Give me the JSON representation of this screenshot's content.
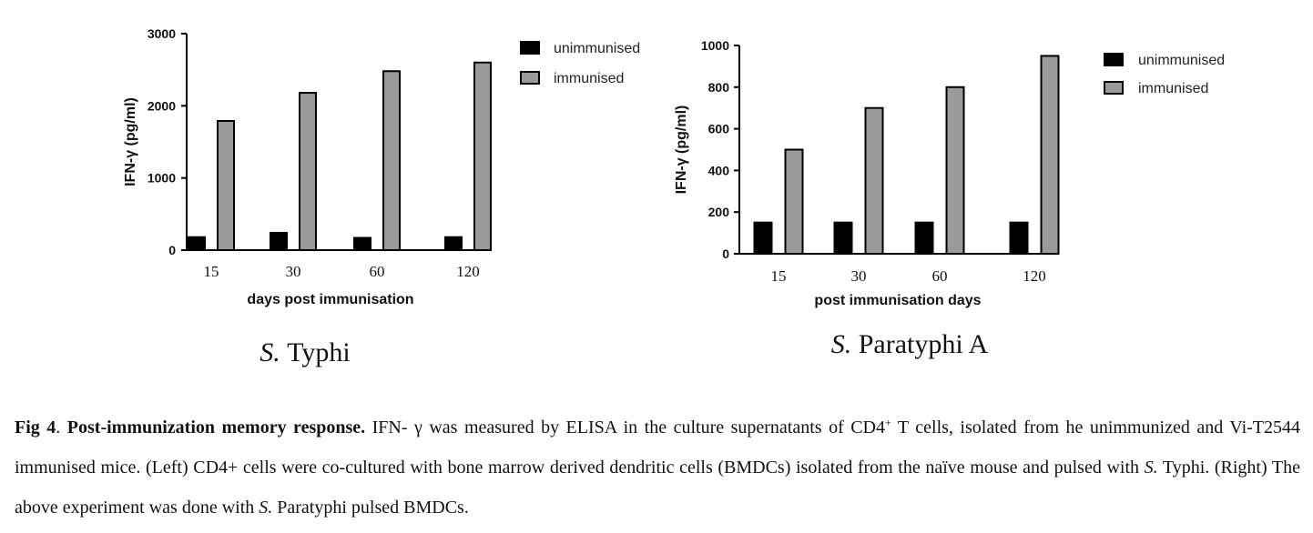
{
  "chart_data": [
    {
      "type": "bar",
      "panel_title": {
        "italic": "S.",
        "rest": " Typhi"
      },
      "xlabel": "days post immunisation",
      "ylabel": "IFN-γ (pg/ml)",
      "ylim": [
        0,
        3000
      ],
      "yticks": [
        "0",
        "1000",
        "2000",
        "3000"
      ],
      "categories": [
        "15",
        "30",
        "60",
        "120"
      ],
      "legend_position": "top-right",
      "series": [
        {
          "name": "unimmunised",
          "color": "#000000",
          "values": [
            180,
            240,
            170,
            180
          ]
        },
        {
          "name": "immunised",
          "color": "#9a9a9a",
          "values": [
            1790,
            2180,
            2480,
            2600
          ]
        }
      ]
    },
    {
      "type": "bar",
      "panel_title": {
        "italic": "S.",
        "rest": " Paratyphi A"
      },
      "xlabel": "post immunisation days",
      "ylabel": "IFN-γ (pg/ml)",
      "ylim": [
        0,
        1000
      ],
      "yticks": [
        "0",
        "200",
        "400",
        "600",
        "800",
        "1000"
      ],
      "categories": [
        "15",
        "30",
        "60",
        "120"
      ],
      "legend_position": "top-right",
      "series": [
        {
          "name": "unimmunised",
          "color": "#000000",
          "values": [
            150,
            150,
            150,
            150
          ]
        },
        {
          "name": "immunised",
          "color": "#9a9a9a",
          "values": [
            500,
            700,
            800,
            950
          ]
        }
      ]
    }
  ],
  "caption": {
    "fig_label": "Fig 4",
    "title": "Post-immunization memory response.",
    "part1": " IFN- γ was measured by ELISA in the culture supernatants of CD4",
    "sup": "+",
    "part2": " T cells, isolated from he unimmunized and Vi-T2544 immunised mice. (Left) CD4+ cells were co-cultured with bone marrow derived dendritic cells (BMDCs) isolated from the naïve mouse and pulsed with ",
    "s1": "S.",
    "part3": " Typhi. (Right) The above experiment was done with ",
    "s2": "S.",
    "part4": " Paratyphi pulsed BMDCs."
  }
}
